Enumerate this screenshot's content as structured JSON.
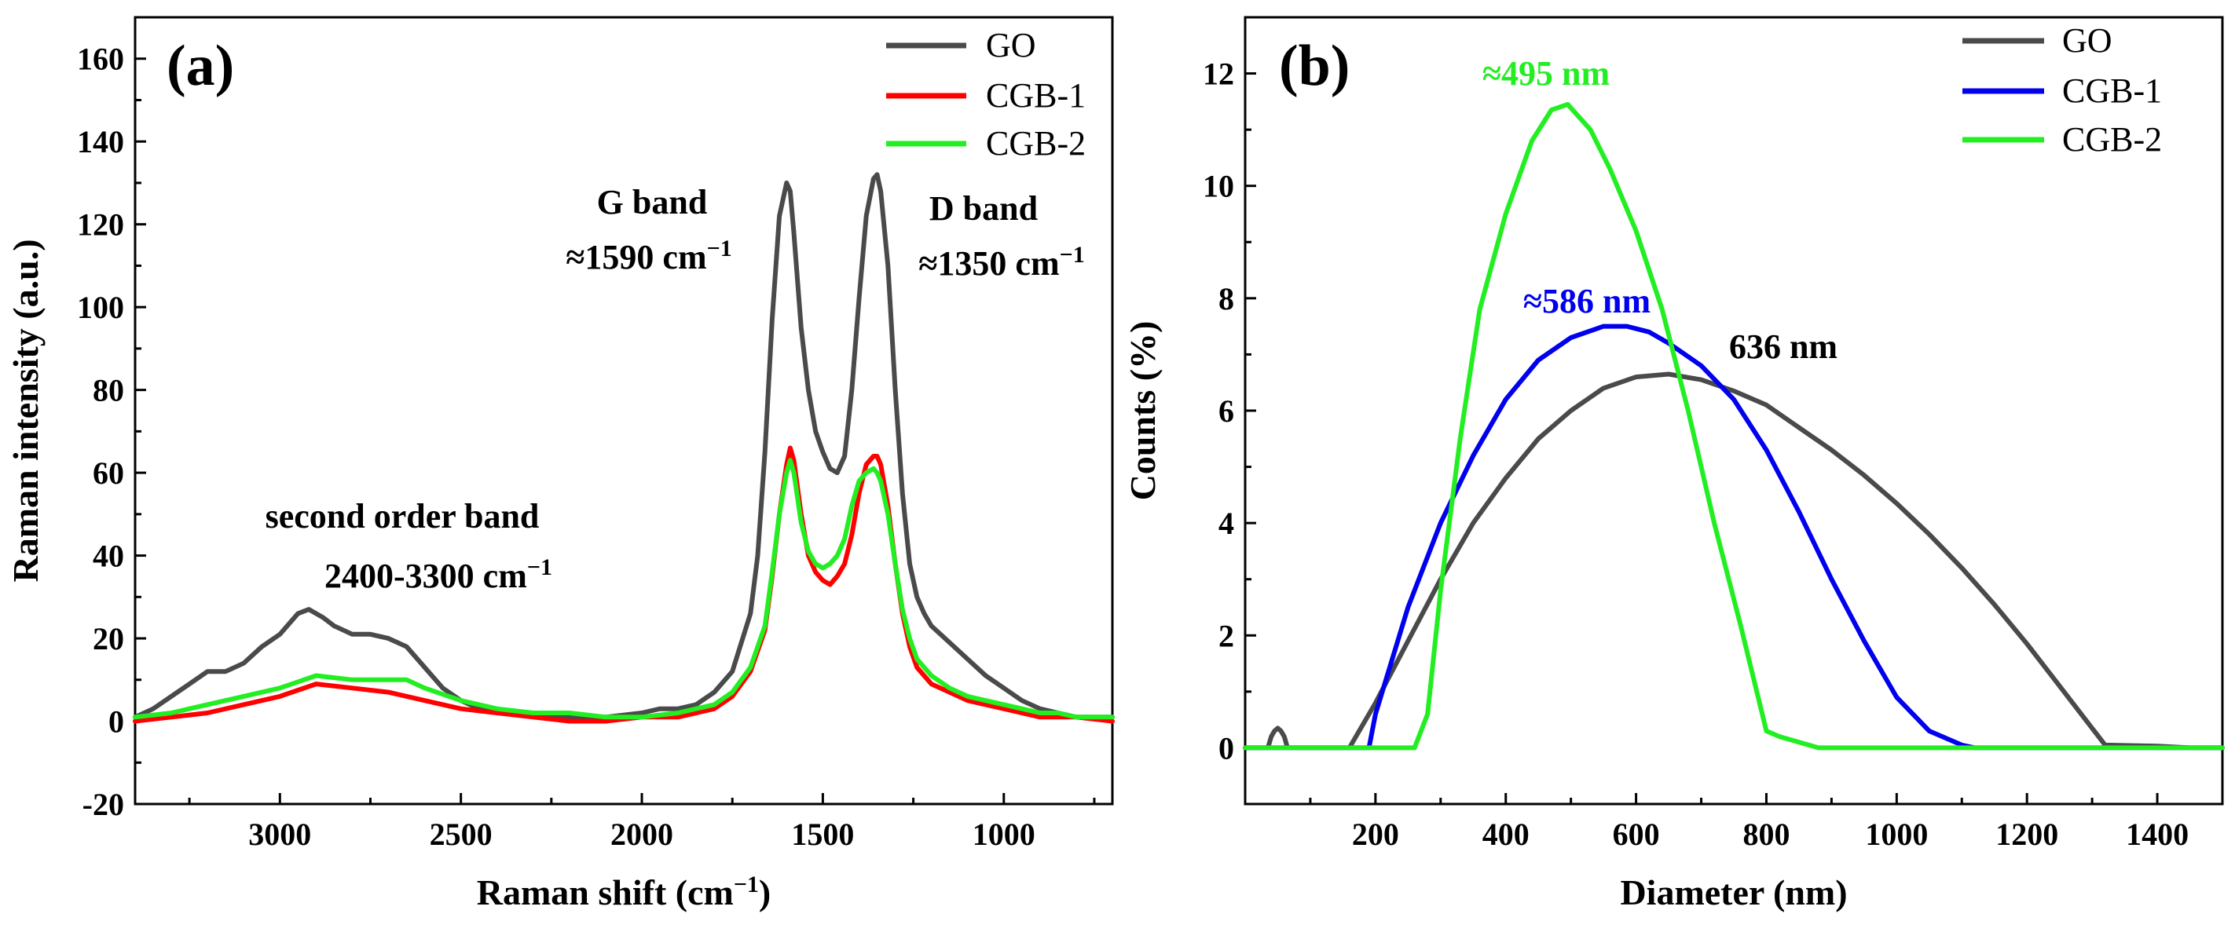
{
  "figure": {
    "colors": {
      "GO": "#4a4a4a",
      "CGB-1_a": "#ff0000",
      "CGB-2": "#22ee22",
      "CGB-1_b": "#0000ee"
    }
  },
  "chart_data": [
    {
      "type": "line",
      "panel_label": "(a)",
      "xlabel": "Raman shift (cm",
      "xlabel_sup": "−1",
      "xlabel_end": ")",
      "ylabel": "Raman intensity (a.u.)",
      "xlim": [
        3400,
        700
      ],
      "ylim": [
        -20,
        170
      ],
      "x_ticks": [
        3000,
        2500,
        2000,
        1500,
        1000
      ],
      "y_ticks": [
        -20,
        0,
        20,
        40,
        60,
        80,
        100,
        120,
        140,
        160
      ],
      "legend_position": "top-right",
      "annotations": [
        {
          "lines": [
            {
              "text": "G band"
            },
            {
              "text": "≈1590 cm",
              "sup": "−1"
            }
          ]
        },
        {
          "lines": [
            {
              "text": "D band"
            },
            {
              "text": "≈1350 cm",
              "sup": "−1"
            }
          ]
        },
        {
          "lines": [
            {
              "text": "second order band"
            },
            {
              "text": "2400-3300 cm",
              "sup": "−1"
            }
          ]
        }
      ],
      "series": [
        {
          "name": "GO",
          "color": "#4a4a4a",
          "x": [
            3400,
            3350,
            3300,
            3250,
            3200,
            3150,
            3100,
            3050,
            3000,
            2950,
            2920,
            2880,
            2850,
            2800,
            2750,
            2700,
            2650,
            2600,
            2550,
            2500,
            2450,
            2400,
            2300,
            2200,
            2100,
            2000,
            1950,
            1900,
            1850,
            1800,
            1750,
            1700,
            1680,
            1660,
            1640,
            1620,
            1600,
            1590,
            1580,
            1560,
            1540,
            1520,
            1500,
            1480,
            1460,
            1440,
            1420,
            1400,
            1380,
            1360,
            1350,
            1340,
            1320,
            1300,
            1280,
            1260,
            1240,
            1220,
            1200,
            1150,
            1100,
            1050,
            1000,
            950,
            900,
            850,
            800,
            750,
            700
          ],
          "y": [
            1,
            3,
            6,
            9,
            12,
            12,
            14,
            18,
            21,
            26,
            27,
            25,
            23,
            21,
            21,
            20,
            18,
            13,
            8,
            5,
            3,
            2,
            2,
            1,
            1,
            2,
            3,
            3,
            4,
            7,
            12,
            26,
            40,
            65,
            97,
            122,
            130,
            128,
            118,
            95,
            80,
            70,
            65,
            61,
            60,
            64,
            80,
            102,
            122,
            131,
            132,
            128,
            110,
            80,
            55,
            38,
            30,
            26,
            23,
            19,
            15,
            11,
            8,
            5,
            3,
            2,
            1,
            1,
            1
          ]
        },
        {
          "name": "CGB-1",
          "color": "#ff0000",
          "x": [
            3400,
            3300,
            3200,
            3100,
            3000,
            2900,
            2800,
            2700,
            2600,
            2500,
            2400,
            2300,
            2200,
            2100,
            2000,
            1900,
            1800,
            1750,
            1700,
            1660,
            1640,
            1620,
            1600,
            1590,
            1580,
            1560,
            1540,
            1520,
            1500,
            1480,
            1460,
            1440,
            1420,
            1400,
            1380,
            1360,
            1350,
            1340,
            1320,
            1300,
            1280,
            1260,
            1240,
            1200,
            1150,
            1100,
            1050,
            1000,
            950,
            900,
            850,
            800,
            700
          ],
          "y": [
            0,
            1,
            2,
            4,
            6,
            9,
            8,
            7,
            5,
            3,
            2,
            1,
            0,
            0,
            1,
            1,
            3,
            6,
            12,
            22,
            35,
            50,
            62,
            66,
            63,
            50,
            40,
            36,
            34,
            33,
            35,
            38,
            45,
            55,
            62,
            64,
            64,
            62,
            52,
            38,
            26,
            18,
            13,
            9,
            7,
            5,
            4,
            3,
            2,
            1,
            1,
            1,
            0
          ]
        },
        {
          "name": "CGB-2",
          "color": "#22ee22",
          "x": [
            3400,
            3300,
            3200,
            3100,
            3000,
            2900,
            2800,
            2700,
            2650,
            2600,
            2500,
            2400,
            2300,
            2200,
            2100,
            2000,
            1900,
            1800,
            1750,
            1700,
            1660,
            1640,
            1620,
            1600,
            1590,
            1580,
            1560,
            1540,
            1520,
            1500,
            1480,
            1460,
            1440,
            1420,
            1400,
            1380,
            1360,
            1350,
            1340,
            1320,
            1300,
            1280,
            1260,
            1240,
            1200,
            1150,
            1100,
            1050,
            1000,
            950,
            900,
            850,
            800,
            700
          ],
          "y": [
            1,
            2,
            4,
            6,
            8,
            11,
            10,
            10,
            10,
            8,
            5,
            3,
            2,
            2,
            1,
            1,
            2,
            4,
            7,
            13,
            23,
            36,
            50,
            60,
            63,
            60,
            48,
            41,
            38,
            37,
            38,
            40,
            44,
            52,
            58,
            60,
            61,
            60,
            58,
            50,
            38,
            27,
            20,
            15,
            11,
            8,
            6,
            5,
            4,
            3,
            2,
            2,
            1,
            1
          ]
        }
      ]
    },
    {
      "type": "line",
      "panel_label": "(b)",
      "xlabel": "Diameter (nm)",
      "ylabel": "Counts (%)",
      "xlim": [
        0,
        1500
      ],
      "ylim": [
        -1,
        13
      ],
      "x_ticks": [
        200,
        400,
        600,
        800,
        1000,
        1200,
        1400
      ],
      "y_ticks": [
        0,
        2,
        4,
        6,
        8,
        10,
        12
      ],
      "legend_position": "top-right",
      "annotations": [
        {
          "text": "≈495 nm",
          "color": "#22ee22"
        },
        {
          "text": "≈586 nm",
          "color": "#0000ee"
        },
        {
          "text": "636 nm",
          "color": "#000000"
        }
      ],
      "series": [
        {
          "name": "GO",
          "color": "#4a4a4a",
          "x": [
            0,
            35,
            40,
            45,
            50,
            55,
            60,
            65,
            70,
            150,
            160,
            200,
            250,
            300,
            350,
            400,
            450,
            500,
            550,
            600,
            650,
            700,
            750,
            800,
            850,
            900,
            950,
            1000,
            1050,
            1100,
            1150,
            1200,
            1250,
            1300,
            1320,
            1400,
            1450,
            1500
          ],
          "y": [
            0,
            0,
            0.2,
            0.3,
            0.35,
            0.3,
            0.2,
            0,
            0,
            0,
            0,
            0.8,
            1.9,
            3.0,
            4.0,
            4.8,
            5.5,
            6.0,
            6.4,
            6.6,
            6.65,
            6.55,
            6.35,
            6.1,
            5.7,
            5.3,
            4.85,
            4.35,
            3.8,
            3.2,
            2.55,
            1.85,
            1.1,
            0.35,
            0.05,
            0.03,
            0,
            0
          ]
        },
        {
          "name": "CGB-1",
          "color": "#0000ee",
          "x": [
            0,
            180,
            190,
            200,
            250,
            300,
            350,
            400,
            450,
            500,
            550,
            586,
            620,
            650,
            700,
            750,
            800,
            850,
            900,
            950,
            1000,
            1050,
            1100,
            1120,
            1500
          ],
          "y": [
            0,
            0,
            0,
            0.6,
            2.5,
            4.0,
            5.2,
            6.2,
            6.9,
            7.3,
            7.5,
            7.5,
            7.4,
            7.2,
            6.8,
            6.2,
            5.3,
            4.2,
            3.0,
            1.9,
            0.9,
            0.3,
            0.05,
            0,
            0
          ]
        },
        {
          "name": "CGB-2",
          "color": "#22ee22",
          "x": [
            0,
            260,
            280,
            300,
            330,
            360,
            400,
            440,
            470,
            495,
            530,
            560,
            600,
            640,
            680,
            720,
            760,
            800,
            820,
            880,
            1500
          ],
          "y": [
            0,
            0,
            0.6,
            2.8,
            5.5,
            7.8,
            9.5,
            10.8,
            11.35,
            11.45,
            11.0,
            10.3,
            9.2,
            7.8,
            6.0,
            4.0,
            2.2,
            0.3,
            0.2,
            0,
            0
          ]
        }
      ]
    }
  ]
}
